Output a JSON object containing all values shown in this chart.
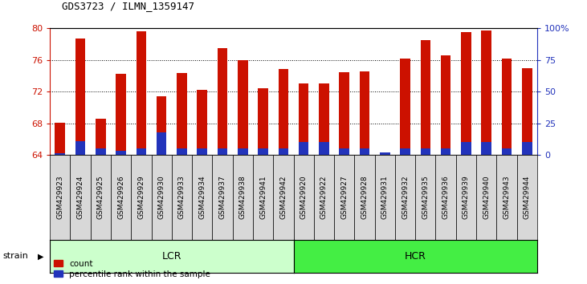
{
  "title": "GDS3723 / ILMN_1359147",
  "samples": [
    "GSM429923",
    "GSM429924",
    "GSM429925",
    "GSM429926",
    "GSM429929",
    "GSM429930",
    "GSM429933",
    "GSM429934",
    "GSM429937",
    "GSM429938",
    "GSM429941",
    "GSM429942",
    "GSM429920",
    "GSM429922",
    "GSM429927",
    "GSM429928",
    "GSM429931",
    "GSM429932",
    "GSM429935",
    "GSM429936",
    "GSM429939",
    "GSM429940",
    "GSM429943",
    "GSM429944"
  ],
  "counts": [
    68.1,
    78.7,
    68.6,
    74.3,
    79.6,
    71.4,
    74.4,
    72.2,
    77.5,
    76.0,
    72.4,
    74.9,
    73.0,
    73.0,
    74.5,
    74.6,
    64.3,
    76.2,
    78.5,
    76.6,
    79.5,
    79.7,
    76.2,
    75.0
  ],
  "percentile_ranks_pct": [
    1.0,
    11.0,
    5.0,
    3.0,
    5.0,
    18.0,
    5.0,
    5.0,
    5.0,
    5.0,
    5.0,
    5.0,
    10.0,
    10.0,
    5.0,
    5.0,
    2.0,
    5.0,
    5.0,
    5.0,
    10.0,
    10.0,
    5.0,
    10.0
  ],
  "groups": [
    "LCR",
    "HCR"
  ],
  "group_sizes": [
    12,
    12
  ],
  "ylim_left": [
    64,
    80
  ],
  "ylim_right": [
    0,
    100
  ],
  "yticks_left": [
    64,
    68,
    72,
    76,
    80
  ],
  "yticks_right": [
    0,
    25,
    50,
    75,
    100
  ],
  "bar_color": "#cc1100",
  "percentile_color": "#2233bb",
  "lcr_color": "#ccffcc",
  "hcr_color": "#44ee44",
  "title_color": "#000000",
  "left_axis_color": "#cc1100",
  "right_axis_color": "#2233bb",
  "bar_width": 0.5,
  "legend_count_label": "count",
  "legend_percentile_label": "percentile rank within the sample",
  "strain_label": "strain"
}
